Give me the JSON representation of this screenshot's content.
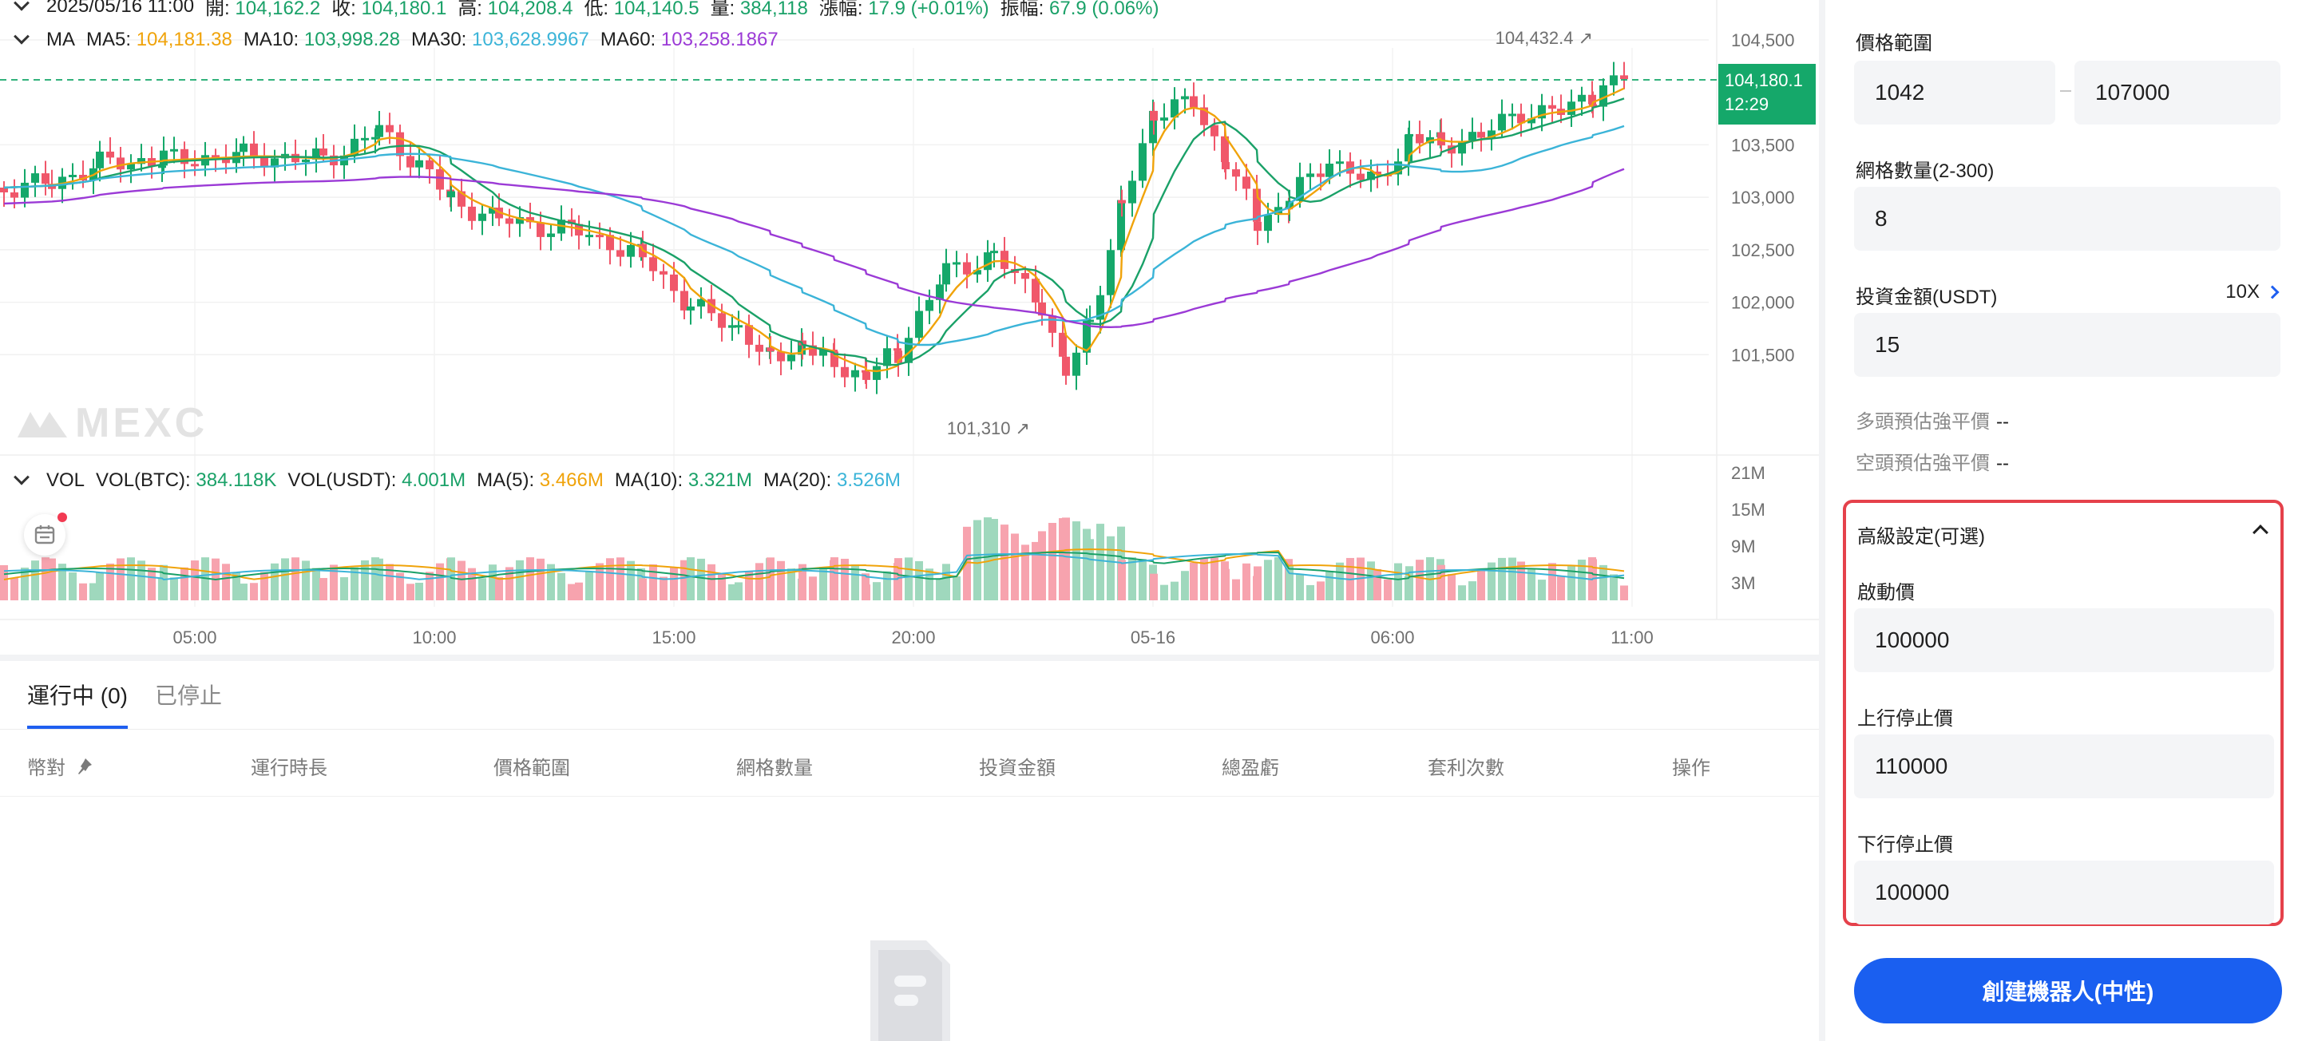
{
  "chart": {
    "ohlc_line": {
      "date": "2025/05/16 11:00",
      "open_label": "開:",
      "open": "104,162.2",
      "close_label": "收:",
      "close": "104,180.1",
      "high_label": "高:",
      "high": "104,208.4",
      "low_label": "低:",
      "low": "104,140.5",
      "vol_label": "量:",
      "vol": "384,118",
      "chg_label": "漲幅:",
      "chg": "17.9 (+0.01%)",
      "amp_label": "振幅:",
      "amp": "67.9 (0.06%)"
    },
    "ma_line": {
      "label": "MA",
      "ma5_label": "MA5:",
      "ma5": "104,181.38",
      "ma10_label": "MA10:",
      "ma10": "103,998.28",
      "ma30_label": "MA30:",
      "ma30": "103,628.9967",
      "ma60_label": "MA60:",
      "ma60": "103,258.1867"
    },
    "vol_line": {
      "label": "VOL",
      "vbtc_label": "VOL(BTC):",
      "vbtc": "384.118K",
      "vusdt_label": "VOL(USDT):",
      "vusdt": "4.001M",
      "m5_label": "MA(5):",
      "m5": "3.466M",
      "m10_label": "MA(10):",
      "m10": "3.321M",
      "m20_label": "MA(20):",
      "m20": "3.526M"
    },
    "price_ticks": [
      "104,500",
      "103,500",
      "103,000",
      "102,500",
      "102,000",
      "101,500"
    ],
    "vol_ticks": [
      "21M",
      "15M",
      "9M",
      "3M"
    ],
    "time_ticks": [
      "05:00",
      "10:00",
      "15:00",
      "20:00",
      "05-16",
      "06:00",
      "11:00"
    ],
    "current_price": "104,180.1",
    "countdown": "12:29",
    "high_mark": "104,432.4",
    "low_mark": "101,310",
    "watermark": "MEXC",
    "colors": {
      "up": "#15a86a",
      "down": "#f0576a",
      "ma5": "#f0a30a",
      "ma10": "#1aa168",
      "ma30": "#3bb4d8",
      "ma60": "#9b3ad6"
    }
  },
  "orders": {
    "tabs": [
      {
        "label": "運行中 (0)",
        "active": true
      },
      {
        "label": "已停止",
        "active": false
      }
    ],
    "columns": [
      "幣對",
      "運行時長",
      "價格範圍",
      "網格數量",
      "投資金額",
      "總盈虧",
      "套利次數",
      "操作"
    ]
  },
  "panel": {
    "price_range_label": "價格範圍",
    "price_low": "1042",
    "price_high": "107000",
    "grid_count_label": "網格數量(2-300)",
    "grid_count": "8",
    "invest_label": "投資金額(USDT)",
    "leverage": "10X",
    "invest": "15",
    "long_liq_label": "多頭預估強平價",
    "long_liq": "--",
    "short_liq_label": "空頭預估強平價",
    "short_liq": "--",
    "advanced_label": "高級設定(可選)",
    "trigger_label": "啟動價",
    "trigger": "100000",
    "upper_stop_label": "上行停止價",
    "upper_stop": "110000",
    "lower_stop_label": "下行停止價",
    "lower_stop": "100000",
    "create_button": "創建機器人(中性)"
  }
}
